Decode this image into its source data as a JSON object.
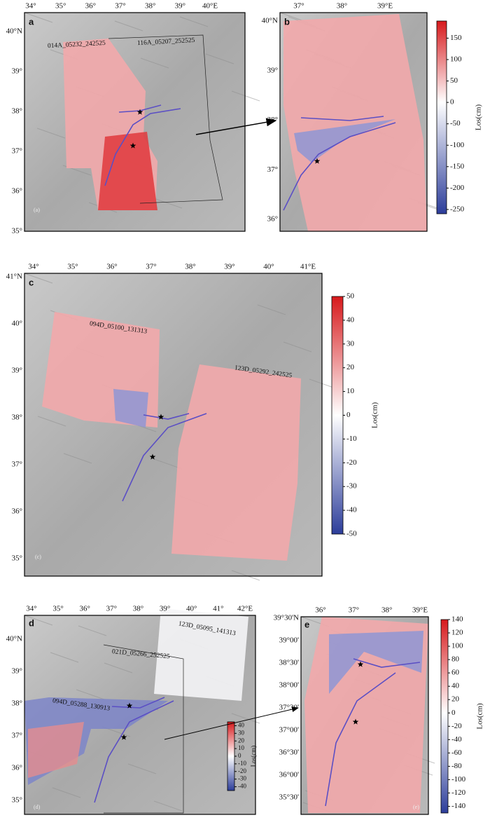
{
  "panels": [
    {
      "letter": "a",
      "lon_labels": [
        "34°",
        "35°",
        "36°",
        "37°",
        "38°",
        "39°",
        "40°E"
      ],
      "lat_labels": [
        "40°N",
        "39°",
        "38°",
        "37°",
        "36°",
        "35°"
      ],
      "tracks": [
        "014A_05232_242525",
        "116A_05207_252525"
      ],
      "corner_label": "(a)"
    },
    {
      "letter": "b",
      "lon_labels": [
        "37°",
        "38°",
        "39°E"
      ],
      "lat_labels": [
        "40°N",
        "39°",
        "38°",
        "37°",
        "36°"
      ],
      "colorbar": {
        "label": "Los(cm)",
        "ylim": [
          -260,
          190
        ],
        "yticks": [
          150,
          100,
          50,
          0,
          -50,
          -100,
          -150,
          -200,
          -250
        ]
      }
    },
    {
      "letter": "c",
      "lon_labels": [
        "34°",
        "35°",
        "36°",
        "37°",
        "38°",
        "39°",
        "40°",
        "41°E"
      ],
      "lat_labels": [
        "41°N",
        "40°",
        "39°",
        "38°",
        "37°",
        "36°",
        "35°"
      ],
      "tracks": [
        "094D_05100_131313",
        "123D_05292_242525"
      ],
      "corner_label": "(c)",
      "colorbar": {
        "label": "Los(cm)",
        "ylim": [
          -50,
          50
        ],
        "yticks": [
          50,
          40,
          30,
          20,
          10,
          0,
          -10,
          -20,
          -30,
          -40,
          -50
        ]
      }
    },
    {
      "letter": "d",
      "lon_labels": [
        "34°",
        "35°",
        "36°",
        "37°",
        "38°",
        "39°",
        "40°",
        "41°",
        "42°E"
      ],
      "lat_labels": [
        "40°N",
        "39°",
        "38°",
        "37°",
        "36°",
        "35°"
      ],
      "tracks": [
        "123D_05095_141313",
        "021D_05266_252525",
        "094D_05288_130913"
      ],
      "corner_label": "(d)",
      "colorbar": {
        "label": "Los(cm)",
        "ylim": [
          -45,
          45
        ],
        "yticks": [
          40,
          30,
          20,
          10,
          0,
          -10,
          -20,
          -30,
          -40
        ]
      }
    },
    {
      "letter": "e",
      "lon_labels": [
        "36°",
        "37°",
        "38°",
        "39°E"
      ],
      "lat_labels": [
        "39°30'N",
        "39°00'",
        "38°30'",
        "38°00'",
        "37°30'",
        "37°00'",
        "36°30'",
        "36°00'",
        "35°30'"
      ],
      "corner_label": "(e)",
      "colorbar": {
        "label": "Los(cm)",
        "ylim": [
          -150,
          140
        ],
        "yticks": [
          140,
          120,
          100,
          80,
          60,
          40,
          20,
          0,
          -20,
          -40,
          -60,
          -80,
          -100,
          -120,
          -140
        ]
      }
    }
  ]
}
